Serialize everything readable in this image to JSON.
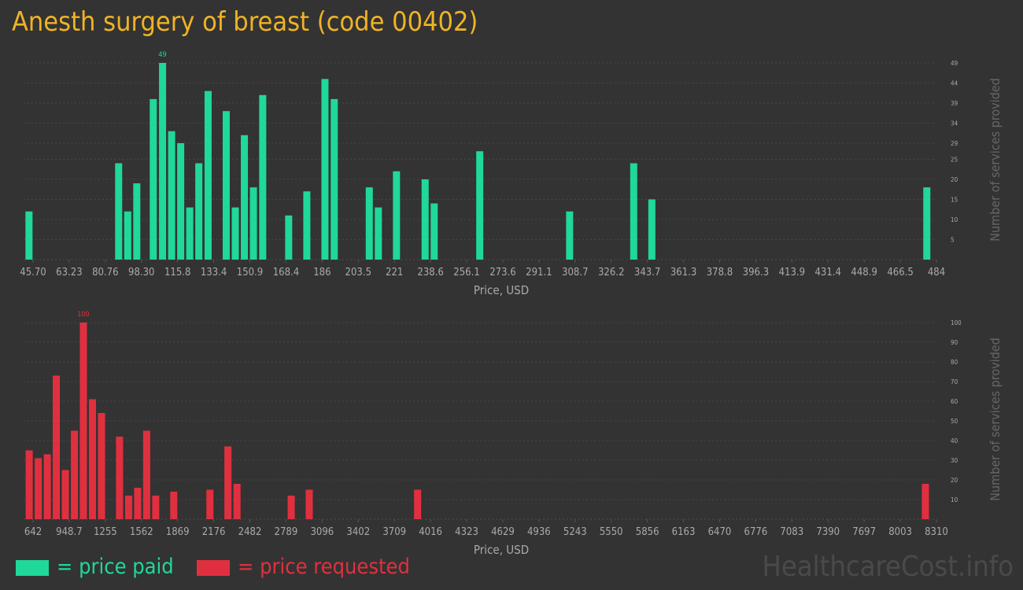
{
  "title": "Anesth surgery of breast (code 00402)",
  "legend": {
    "paid": "= price paid",
    "requested": "= price requested"
  },
  "colors": {
    "paid": "#1FD89A",
    "requested": "#E0303F",
    "title": "#F0B323"
  },
  "watermark": "HealthcareCost.info",
  "chart_data": [
    {
      "type": "bar",
      "name": "price paid",
      "xlabel": "Price, USD",
      "ylabel": "Number of services provided",
      "ylim": [
        0,
        49
      ],
      "yticks": [
        5,
        10,
        15,
        20,
        25,
        29,
        34,
        39,
        44,
        49
      ],
      "xlim": [
        45.7,
        484
      ],
      "xticks": [
        "45.70",
        "63.23",
        "80.76",
        "98.30",
        "115.8",
        "133.4",
        "150.9",
        "168.4",
        "186",
        "203.5",
        "221",
        "238.6",
        "256.1",
        "273.6",
        "291.1",
        "308.7",
        "326.2",
        "343.7",
        "361.3",
        "378.8",
        "396.3",
        "413.9",
        "431.4",
        "448.9",
        "466.5",
        "484"
      ],
      "max_label": "49",
      "bars": [
        {
          "x": 46.4,
          "value": 12
        },
        {
          "x": 89.9,
          "value": 24
        },
        {
          "x": 94.3,
          "value": 12
        },
        {
          "x": 98.7,
          "value": 19
        },
        {
          "x": 106.7,
          "value": 40
        },
        {
          "x": 111.2,
          "value": 49
        },
        {
          "x": 115.6,
          "value": 32
        },
        {
          "x": 120.0,
          "value": 29
        },
        {
          "x": 124.4,
          "value": 13
        },
        {
          "x": 128.8,
          "value": 24
        },
        {
          "x": 133.3,
          "value": 42
        },
        {
          "x": 142.1,
          "value": 37
        },
        {
          "x": 146.5,
          "value": 13
        },
        {
          "x": 150.9,
          "value": 31
        },
        {
          "x": 155.3,
          "value": 18
        },
        {
          "x": 159.8,
          "value": 41
        },
        {
          "x": 172.4,
          "value": 11
        },
        {
          "x": 181.2,
          "value": 17
        },
        {
          "x": 190.0,
          "value": 45
        },
        {
          "x": 194.5,
          "value": 40
        },
        {
          "x": 211.5,
          "value": 18
        },
        {
          "x": 215.9,
          "value": 13
        },
        {
          "x": 224.7,
          "value": 22
        },
        {
          "x": 238.6,
          "value": 20
        },
        {
          "x": 243.0,
          "value": 14
        },
        {
          "x": 265.1,
          "value": 27
        },
        {
          "x": 308.7,
          "value": 12
        },
        {
          "x": 339.8,
          "value": 24
        },
        {
          "x": 348.6,
          "value": 15
        },
        {
          "x": 482.0,
          "value": 18
        }
      ]
    },
    {
      "type": "bar",
      "name": "price requested",
      "xlabel": "Price, USD",
      "ylabel": "Number of services provided",
      "ylim": [
        0,
        100
      ],
      "yticks": [
        10,
        20,
        30,
        40,
        50,
        60,
        70,
        80,
        90,
        100
      ],
      "xlim": [
        642,
        8310
      ],
      "xticks": [
        "642",
        "948.7",
        "1255",
        "1562",
        "1869",
        "2176",
        "2482",
        "2789",
        "3096",
        "3402",
        "3709",
        "4016",
        "4323",
        "4629",
        "4936",
        "5243",
        "5550",
        "5856",
        "6163",
        "6470",
        "6776",
        "7083",
        "7390",
        "7697",
        "8003",
        "8310"
      ],
      "max_label": "100",
      "bars": [
        {
          "x": 656,
          "value": 35
        },
        {
          "x": 733,
          "value": 31
        },
        {
          "x": 810,
          "value": 33
        },
        {
          "x": 886,
          "value": 73
        },
        {
          "x": 963,
          "value": 25
        },
        {
          "x": 1040,
          "value": 45
        },
        {
          "x": 1116,
          "value": 100
        },
        {
          "x": 1193,
          "value": 61
        },
        {
          "x": 1270,
          "value": 54
        },
        {
          "x": 1423,
          "value": 42
        },
        {
          "x": 1500,
          "value": 12
        },
        {
          "x": 1577,
          "value": 16
        },
        {
          "x": 1653,
          "value": 45
        },
        {
          "x": 1730,
          "value": 12
        },
        {
          "x": 1883,
          "value": 14
        },
        {
          "x": 2190,
          "value": 15
        },
        {
          "x": 2343,
          "value": 37
        },
        {
          "x": 2420,
          "value": 18
        },
        {
          "x": 2880,
          "value": 12
        },
        {
          "x": 3033,
          "value": 15
        },
        {
          "x": 3953,
          "value": 15
        },
        {
          "x": 8263,
          "value": 18
        }
      ]
    }
  ]
}
